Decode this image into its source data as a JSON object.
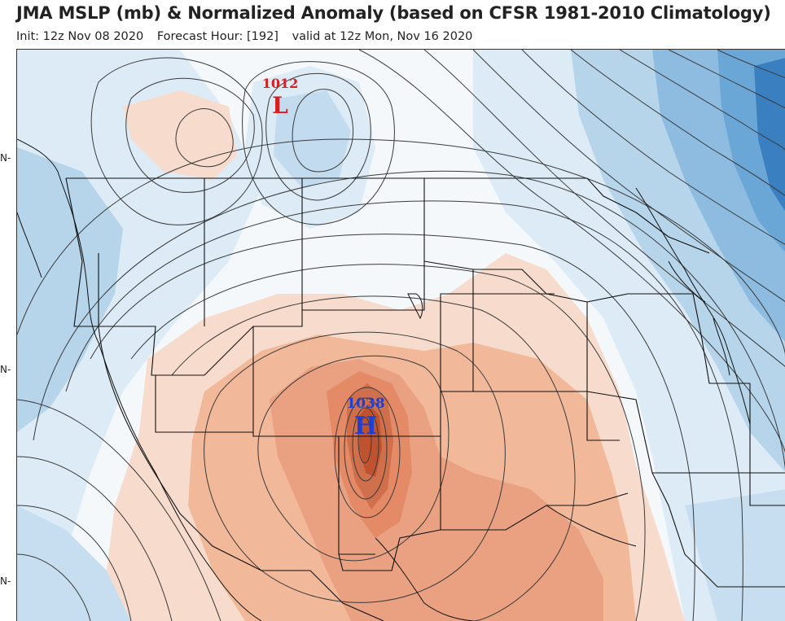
{
  "header": {
    "title": "JMA MSLP (mb) & Normalized Anomaly (based on CFSR 1981-2010 Climatology)",
    "init": "Init: 12z Nov 08 2020",
    "forecast_hour": "Forecast Hour: [192]",
    "valid": "valid at 12z Mon, Nov 16 2020"
  },
  "map": {
    "lat_tick_labels": [
      "N",
      "N",
      "N"
    ],
    "pressure_centers": [
      {
        "type": "low",
        "symbol": "L",
        "value": "1012",
        "color": "#d42020"
      },
      {
        "type": "high",
        "symbol": "H",
        "value": "1038",
        "color": "#1f3fd1"
      }
    ],
    "colors": {
      "positive_anomaly_light": "#f7dccd",
      "positive_anomaly_mid": "#f1b89a",
      "positive_anomaly_strong": "#e48a66",
      "positive_anomaly_peak": "#c95b3c",
      "negative_anomaly_light": "#dcebf5",
      "negative_anomaly_mid": "#b6d4ea",
      "negative_anomaly_strong": "#6aa7d6",
      "negative_anomaly_deep": "#3a7fc0"
    }
  }
}
